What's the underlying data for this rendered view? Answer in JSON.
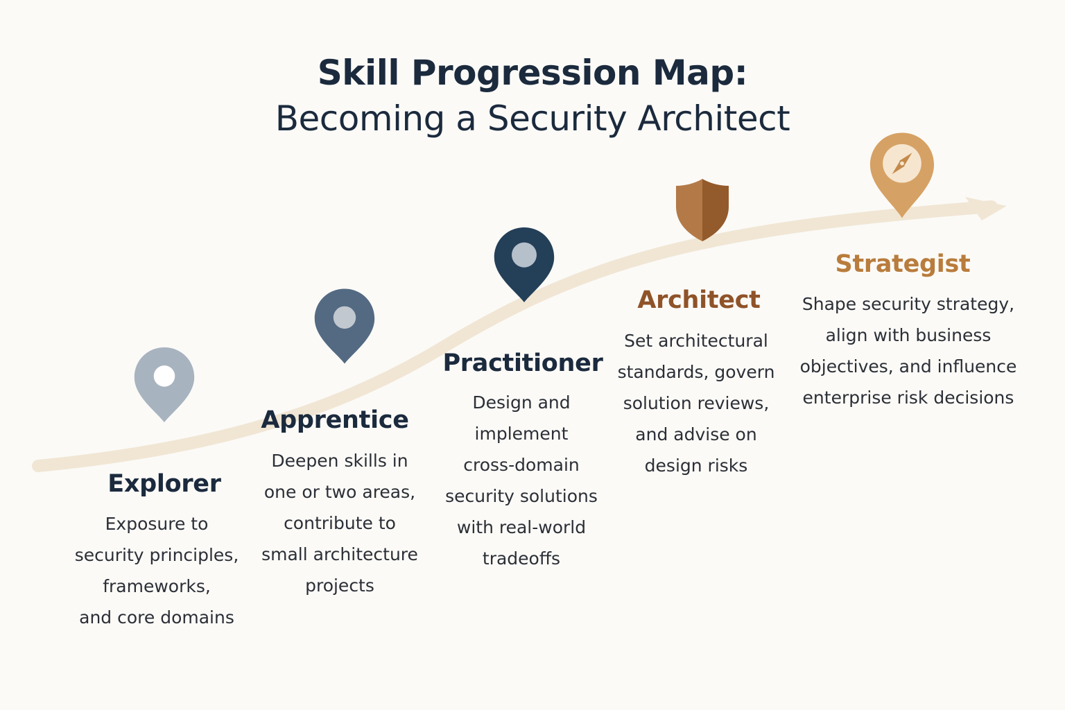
{
  "title": {
    "line1": "Skill Progression Map:",
    "line2": "Becoming a Security Architect"
  },
  "colors": {
    "background": "#fbfaf7",
    "path": "#f1e6d4",
    "title_text": "#1b2a3d",
    "explorer": "#a7b3bf",
    "apprentice": "#536a82",
    "practitioner": "#243f58",
    "architect": "#a4693a",
    "strategist": "#d6a164"
  },
  "stages": [
    {
      "name": "Explorer",
      "icon": "location-pin-icon",
      "description": [
        "Exposure to",
        "security principles,",
        "frameworks,",
        "and core domains"
      ]
    },
    {
      "name": "Apprentice",
      "icon": "location-pin-icon",
      "description": [
        "Deepen skills in",
        "one or two areas,",
        "contribute to",
        "small architecture",
        "projects"
      ]
    },
    {
      "name": "Practitioner",
      "icon": "location-pin-icon",
      "description": [
        "Design and",
        "implement",
        "cross-domain",
        "security solutions",
        "with real-world",
        "tradeoffs"
      ]
    },
    {
      "name": "Architect",
      "icon": "shield-icon",
      "description": [
        "Set architectural",
        "standards, govern",
        "solution reviews,",
        "and advise on",
        "design risks"
      ]
    },
    {
      "name": "Strategist",
      "icon": "compass-pin-icon",
      "description": [
        "Shape security strategy,",
        "align with business",
        "objectives, and influence",
        "enterprise risk decisions"
      ]
    }
  ]
}
